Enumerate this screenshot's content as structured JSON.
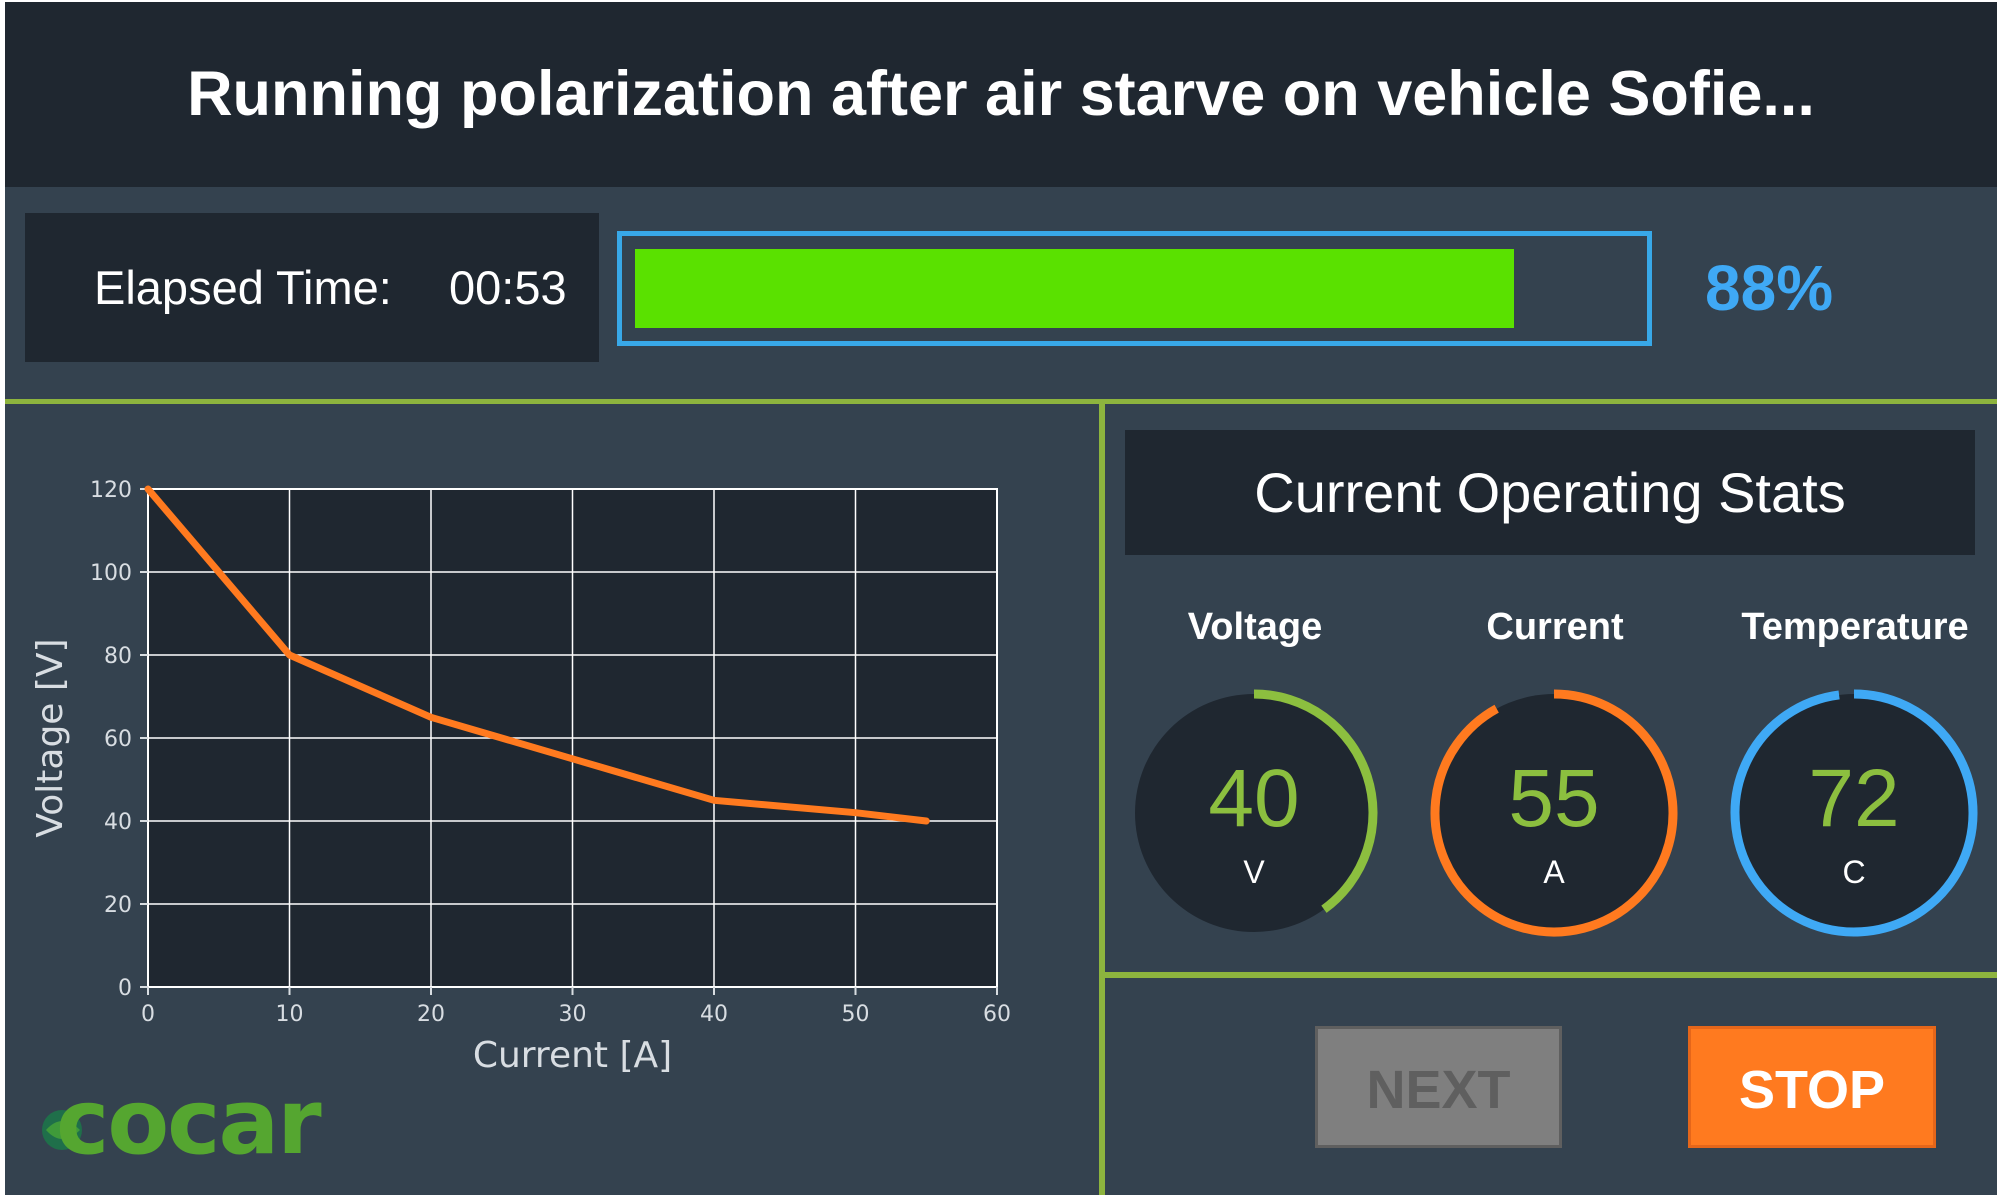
{
  "title": "Running polarization after air starve on vehicle Sofie...",
  "elapsed": {
    "label": "Elapsed Time:",
    "value": "00:53"
  },
  "progress": {
    "percent_label": "88%",
    "fraction": 0.88
  },
  "chart_data": {
    "type": "line",
    "title": "",
    "xlabel": "Current [A]",
    "ylabel": "Voltage [V]",
    "xlim": [
      0,
      60
    ],
    "ylim": [
      0,
      120
    ],
    "grid": true,
    "x_ticks": [
      0,
      10,
      20,
      30,
      40,
      50,
      60
    ],
    "y_ticks": [
      0,
      20,
      40,
      60,
      80,
      100,
      120
    ],
    "series": [
      {
        "color": "#ff7a1f",
        "x": [
          0,
          10,
          20,
          30,
          40,
          50,
          55
        ],
        "y": [
          120,
          80,
          65,
          55,
          45,
          42,
          40
        ]
      }
    ]
  },
  "logo": {
    "text": "cocar"
  },
  "stats": {
    "title": "Current Operating Stats",
    "gauges": [
      {
        "label": "Voltage",
        "value": "40",
        "unit": "V",
        "color": "#8cbf3f",
        "fraction": 0.4
      },
      {
        "label": "Current",
        "value": "55",
        "unit": "A",
        "color": "#ff7a1f",
        "fraction": 0.92
      },
      {
        "label": "Temperature",
        "value": "72",
        "unit": "C",
        "color": "#3fa9f5",
        "fraction": 0.98
      }
    ]
  },
  "buttons": {
    "next_label": "NEXT",
    "stop_label": "STOP"
  },
  "colors": {
    "accent_green": "#8db43e",
    "progress_green": "#5ae100",
    "progress_blue": "#38a8e8",
    "stop_orange": "#ff7a1f"
  }
}
